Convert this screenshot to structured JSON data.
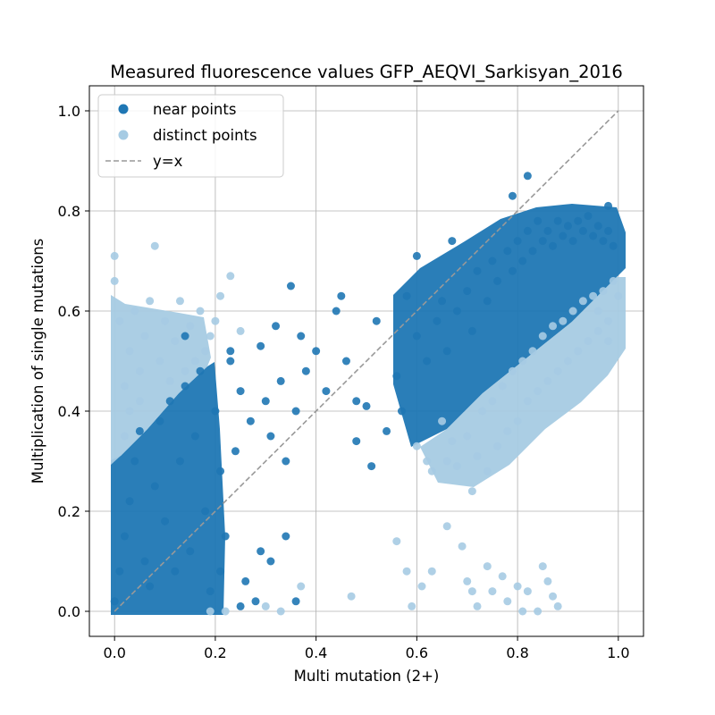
{
  "chart_data": {
    "type": "scatter",
    "title": "Measured fluorescence values GFP_AEQVI_Sarkisyan_2016",
    "xlabel": "Multi mutation (2+)",
    "ylabel": "Multiplication of single mutations",
    "xlim": [
      -0.05,
      1.05
    ],
    "ylim": [
      -0.05,
      1.05
    ],
    "xticks": [
      "0.0",
      "0.2",
      "0.4",
      "0.6",
      "0.8",
      "1.0"
    ],
    "yticks": [
      "0.0",
      "0.2",
      "0.4",
      "0.6",
      "0.8",
      "1.0"
    ],
    "grid": true,
    "legend_position": "top-left",
    "series": [
      {
        "name": "near points",
        "kind": "scatter",
        "color": "#1f77b4",
        "points": [
          [
            0.0,
            0.02
          ],
          [
            0.01,
            0.08
          ],
          [
            0.02,
            0.15
          ],
          [
            0.03,
            0.22
          ],
          [
            0.04,
            0.3
          ],
          [
            0.05,
            0.36
          ],
          [
            0.06,
            0.1
          ],
          [
            0.07,
            0.05
          ],
          [
            0.08,
            0.25
          ],
          [
            0.09,
            0.38
          ],
          [
            0.1,
            0.18
          ],
          [
            0.11,
            0.42
          ],
          [
            0.12,
            0.08
          ],
          [
            0.13,
            0.3
          ],
          [
            0.14,
            0.45
          ],
          [
            0.15,
            0.12
          ],
          [
            0.16,
            0.35
          ],
          [
            0.17,
            0.48
          ],
          [
            0.18,
            0.2
          ],
          [
            0.19,
            0.04
          ],
          [
            0.2,
            0.4
          ],
          [
            0.21,
            0.28
          ],
          [
            0.22,
            0.15
          ],
          [
            0.23,
            0.5
          ],
          [
            0.24,
            0.32
          ],
          [
            0.25,
            0.44
          ],
          [
            0.26,
            0.06
          ],
          [
            0.27,
            0.38
          ],
          [
            0.28,
            0.02
          ],
          [
            0.29,
            0.53
          ],
          [
            0.3,
            0.42
          ],
          [
            0.31,
            0.35
          ],
          [
            0.32,
            0.57
          ],
          [
            0.33,
            0.46
          ],
          [
            0.34,
            0.3
          ],
          [
            0.35,
            0.65
          ],
          [
            0.36,
            0.4
          ],
          [
            0.37,
            0.55
          ],
          [
            0.38,
            0.48
          ],
          [
            0.4,
            0.52
          ],
          [
            0.42,
            0.44
          ],
          [
            0.44,
            0.6
          ],
          [
            0.46,
            0.5
          ],
          [
            0.48,
            0.34
          ],
          [
            0.5,
            0.41
          ],
          [
            0.52,
            0.58
          ],
          [
            0.54,
            0.36
          ],
          [
            0.56,
            0.47
          ],
          [
            0.58,
            0.63
          ],
          [
            0.6,
            0.55
          ],
          [
            0.62,
            0.5
          ],
          [
            0.64,
            0.58
          ],
          [
            0.65,
            0.62
          ],
          [
            0.66,
            0.52
          ],
          [
            0.68,
            0.6
          ],
          [
            0.7,
            0.64
          ],
          [
            0.71,
            0.56
          ],
          [
            0.72,
            0.68
          ],
          [
            0.74,
            0.62
          ],
          [
            0.75,
            0.7
          ],
          [
            0.76,
            0.66
          ],
          [
            0.78,
            0.72
          ],
          [
            0.79,
            0.68
          ],
          [
            0.8,
            0.74
          ],
          [
            0.81,
            0.7
          ],
          [
            0.82,
            0.76
          ],
          [
            0.83,
            0.72
          ],
          [
            0.84,
            0.78
          ],
          [
            0.85,
            0.74
          ],
          [
            0.86,
            0.76
          ],
          [
            0.87,
            0.73
          ],
          [
            0.88,
            0.78
          ],
          [
            0.89,
            0.75
          ],
          [
            0.9,
            0.77
          ],
          [
            0.91,
            0.74
          ],
          [
            0.92,
            0.78
          ],
          [
            0.93,
            0.76
          ],
          [
            0.94,
            0.79
          ],
          [
            0.95,
            0.75
          ],
          [
            0.96,
            0.77
          ],
          [
            0.97,
            0.74
          ],
          [
            0.98,
            0.76
          ],
          [
            0.99,
            0.73
          ],
          [
            0.82,
            0.87
          ],
          [
            0.79,
            0.83
          ],
          [
            0.98,
            0.81
          ],
          [
            0.6,
            0.71
          ],
          [
            0.67,
            0.74
          ],
          [
            0.45,
            0.63
          ],
          [
            0.23,
            0.52
          ],
          [
            0.14,
            0.55
          ],
          [
            0.21,
            0.08
          ],
          [
            0.31,
            0.1
          ],
          [
            0.34,
            0.15
          ],
          [
            0.25,
            0.01
          ],
          [
            0.29,
            0.12
          ],
          [
            0.36,
            0.02
          ],
          [
            0.48,
            0.42
          ],
          [
            0.51,
            0.29
          ],
          [
            0.57,
            0.4
          ]
        ]
      },
      {
        "name": "distinct points",
        "kind": "scatter",
        "color": "#a6cbe3",
        "points": [
          [
            0.0,
            0.66
          ],
          [
            0.0,
            0.71
          ],
          [
            0.01,
            0.58
          ],
          [
            0.02,
            0.45
          ],
          [
            0.03,
            0.52
          ],
          [
            0.04,
            0.6
          ],
          [
            0.05,
            0.48
          ],
          [
            0.06,
            0.55
          ],
          [
            0.07,
            0.62
          ],
          [
            0.08,
            0.73
          ],
          [
            0.09,
            0.5
          ],
          [
            0.1,
            0.58
          ],
          [
            0.11,
            0.46
          ],
          [
            0.12,
            0.54
          ],
          [
            0.13,
            0.62
          ],
          [
            0.14,
            0.48
          ],
          [
            0.15,
            0.57
          ],
          [
            0.16,
            0.5
          ],
          [
            0.17,
            0.6
          ],
          [
            0.18,
            0.52
          ],
          [
            0.19,
            0.55
          ],
          [
            0.2,
            0.58
          ],
          [
            0.21,
            0.63
          ],
          [
            0.23,
            0.67
          ],
          [
            0.25,
            0.56
          ],
          [
            0.02,
            0.35
          ],
          [
            0.03,
            0.4
          ],
          [
            0.05,
            0.42
          ],
          [
            0.6,
            0.33
          ],
          [
            0.62,
            0.3
          ],
          [
            0.63,
            0.28
          ],
          [
            0.65,
            0.38
          ],
          [
            0.66,
            0.3
          ],
          [
            0.67,
            0.34
          ],
          [
            0.68,
            0.29
          ],
          [
            0.7,
            0.35
          ],
          [
            0.71,
            0.24
          ],
          [
            0.72,
            0.31
          ],
          [
            0.73,
            0.4
          ],
          [
            0.74,
            0.28
          ],
          [
            0.75,
            0.42
          ],
          [
            0.76,
            0.33
          ],
          [
            0.77,
            0.45
          ],
          [
            0.78,
            0.36
          ],
          [
            0.79,
            0.48
          ],
          [
            0.8,
            0.38
          ],
          [
            0.81,
            0.5
          ],
          [
            0.82,
            0.42
          ],
          [
            0.83,
            0.52
          ],
          [
            0.84,
            0.44
          ],
          [
            0.85,
            0.55
          ],
          [
            0.86,
            0.46
          ],
          [
            0.87,
            0.57
          ],
          [
            0.88,
            0.48
          ],
          [
            0.89,
            0.58
          ],
          [
            0.9,
            0.5
          ],
          [
            0.91,
            0.6
          ],
          [
            0.92,
            0.52
          ],
          [
            0.93,
            0.62
          ],
          [
            0.94,
            0.54
          ],
          [
            0.95,
            0.63
          ],
          [
            0.96,
            0.56
          ],
          [
            0.97,
            0.64
          ],
          [
            0.98,
            0.58
          ],
          [
            0.99,
            0.66
          ],
          [
            1.0,
            0.63
          ],
          [
            0.98,
            0.54
          ],
          [
            0.96,
            0.6
          ],
          [
            0.56,
            0.14
          ],
          [
            0.58,
            0.08
          ],
          [
            0.61,
            0.05
          ],
          [
            0.63,
            0.08
          ],
          [
            0.66,
            0.17
          ],
          [
            0.69,
            0.13
          ],
          [
            0.7,
            0.06
          ],
          [
            0.71,
            0.04
          ],
          [
            0.72,
            0.01
          ],
          [
            0.74,
            0.09
          ],
          [
            0.75,
            0.04
          ],
          [
            0.77,
            0.07
          ],
          [
            0.78,
            0.02
          ],
          [
            0.8,
            0.05
          ],
          [
            0.81,
            0.0
          ],
          [
            0.82,
            0.04
          ],
          [
            0.84,
            0.0
          ],
          [
            0.85,
            0.09
          ],
          [
            0.86,
            0.06
          ],
          [
            0.87,
            0.03
          ],
          [
            0.88,
            0.01
          ],
          [
            0.3,
            0.01
          ],
          [
            0.33,
            0.0
          ],
          [
            0.37,
            0.05
          ],
          [
            0.47,
            0.03
          ],
          [
            0.59,
            0.01
          ],
          [
            0.19,
            0.0
          ],
          [
            0.22,
            0.0
          ]
        ]
      },
      {
        "name": "y=x",
        "kind": "line",
        "style": "dashed",
        "color": "#999999",
        "x": [
          0.0,
          1.0
        ],
        "y": [
          0.0,
          1.0
        ]
      }
    ]
  }
}
